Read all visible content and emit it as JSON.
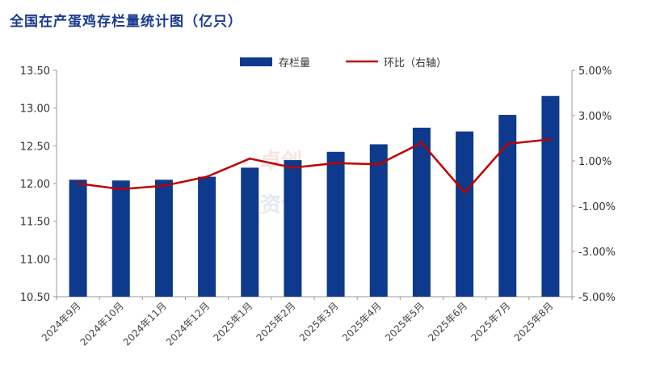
{
  "chart_data": {
    "type": "bar+line",
    "title": "全国在产蛋鸡存栏量统计图（亿只）",
    "categories": [
      "2024年9月",
      "2024年10月",
      "2024年11月",
      "2024年12月",
      "2025年1月",
      "2025年2月",
      "2025年3月",
      "2025年4月",
      "2025年5月",
      "2025年6月",
      "2025年7月",
      "2025年8月"
    ],
    "series": [
      {
        "name": "存栏量",
        "type": "bar",
        "axis": "left",
        "color": "#0d3a8c",
        "values": [
          12.05,
          12.04,
          12.05,
          12.09,
          12.21,
          12.31,
          12.42,
          12.52,
          12.74,
          12.69,
          12.91,
          13.16
        ]
      },
      {
        "name": "环比（右轴）",
        "type": "line",
        "axis": "right",
        "color": "#c00000",
        "values": [
          0.0,
          -0.25,
          -0.1,
          0.3,
          1.1,
          0.7,
          0.9,
          0.85,
          1.8,
          -0.4,
          1.75,
          1.95
        ]
      }
    ],
    "left_axis": {
      "min": 10.5,
      "max": 13.5,
      "ticks": [
        "10.50",
        "11.00",
        "11.50",
        "12.00",
        "12.50",
        "13.00",
        "13.50"
      ]
    },
    "right_axis": {
      "min": -5,
      "max": 5,
      "ticks": [
        "-5.00%",
        "-3.00%",
        "-1.00%",
        "1.00%",
        "3.00%",
        "5.00%"
      ]
    },
    "legend_position": "top-center"
  },
  "watermark": "卓创资讯"
}
